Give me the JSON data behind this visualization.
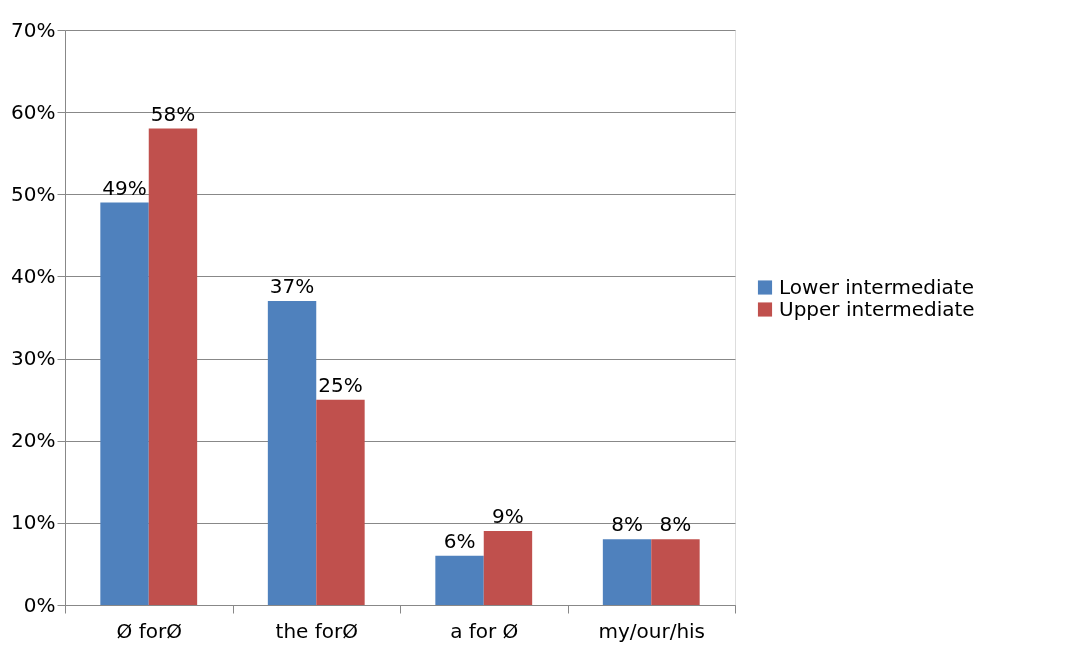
{
  "chart_data": {
    "type": "bar",
    "categories": [
      "Ø forØ",
      "the forØ",
      "a for Ø",
      "my/our/his"
    ],
    "series": [
      {
        "name": "Lower intermediate",
        "color": "#4f81bd",
        "values": [
          49,
          37,
          6,
          8
        ],
        "value_labels": [
          "49%",
          "37%",
          "6%",
          "8%"
        ]
      },
      {
        "name": "Upper intermediate",
        "color": "#c0504d",
        "values": [
          58,
          25,
          9,
          8
        ],
        "value_labels": [
          "58%",
          "25%",
          "9%",
          "8%"
        ]
      }
    ],
    "ylim": [
      0,
      70
    ],
    "yticks": [
      {
        "value": 0,
        "label": "0%"
      },
      {
        "value": 10,
        "label": "10%"
      },
      {
        "value": 20,
        "label": "20%"
      },
      {
        "value": 30,
        "label": "30%"
      },
      {
        "value": 40,
        "label": "40%"
      },
      {
        "value": 50,
        "label": "50%"
      },
      {
        "value": 60,
        "label": "60%"
      },
      {
        "value": 70,
        "label": "70%"
      }
    ],
    "grid": "y",
    "legend": "right"
  }
}
